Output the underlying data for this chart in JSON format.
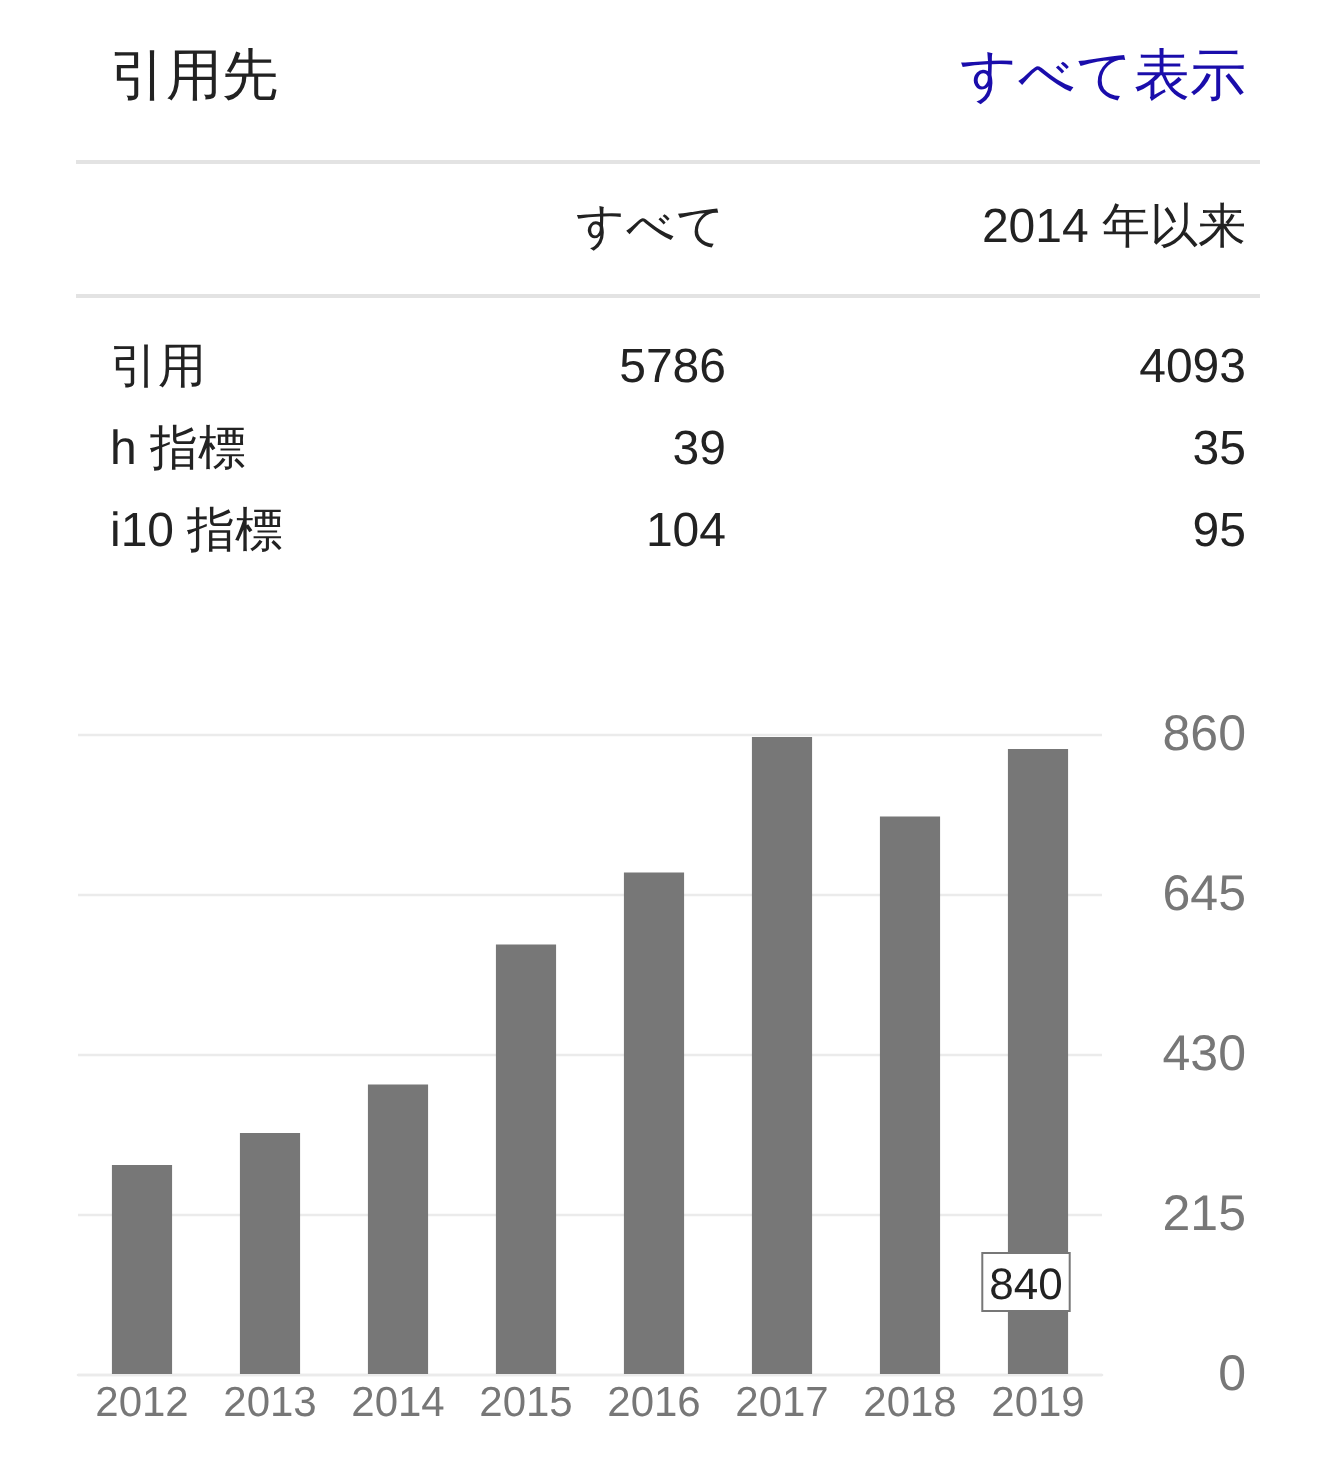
{
  "chart_data": [
    {
      "type": "other",
      "title": "引用先",
      "annotations": [
        "すべて表示"
      ],
      "categories": [
        "引用",
        "h 指標",
        "i10 指標"
      ],
      "series": [
        {
          "name": "すべて",
          "values": [
            5786,
            39,
            104
          ]
        },
        {
          "name": "2014 年以来",
          "values": [
            4093,
            35,
            95
          ]
        }
      ],
      "data_labels": true
    },
    {
      "type": "bar",
      "categories": [
        "2012",
        "2013",
        "2014",
        "2015",
        "2016",
        "2017",
        "2018",
        "2019"
      ],
      "values": [
        281,
        324,
        389,
        577,
        674,
        856,
        749,
        840
      ],
      "color": "#777777",
      "ylim": [
        0,
        860
      ],
      "yticks": [
        0,
        215,
        430,
        645,
        860
      ],
      "grid": "y",
      "value_labels": [
        null,
        null,
        null,
        null,
        null,
        null,
        null,
        "840"
      ]
    }
  ]
}
